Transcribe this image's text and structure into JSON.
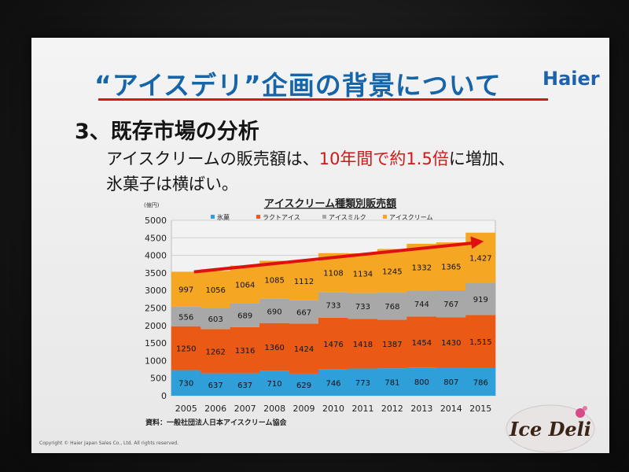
{
  "slide": {
    "title": "“アイスデリ”企画の背景について",
    "brand": "Haier",
    "heading": "3、既存市場の分析",
    "body_line1_pre": "アイスクリームの販売額は、",
    "body_line1_highlight": "10年間で約1.5倍",
    "body_line1_post": "に増加、",
    "body_line2": "氷菓子は横ばい。",
    "footer": "Copyright © Haier Japan Sales Co., Ltd. All rights reserved.",
    "logo_text": "Ice Deli"
  },
  "chart_data": {
    "type": "bar",
    "stacked": true,
    "title": "アイスクリーム種類別販売額",
    "unit_label": "(億円)",
    "source": "資料：一般社団法人日本アイスクリーム協会",
    "categories": [
      "2005",
      "2006",
      "2007",
      "2008",
      "2009",
      "2010",
      "2011",
      "2012",
      "2013",
      "2014",
      "2015"
    ],
    "ylim": [
      0,
      5000
    ],
    "yticks": [
      0,
      500,
      1000,
      1500,
      2000,
      2500,
      3000,
      3500,
      4000,
      4500,
      5000
    ],
    "grid": true,
    "legend_position": "top",
    "series": [
      {
        "name": "氷菓",
        "color": "#2e9fd8",
        "values": [
          730,
          637,
          637,
          710,
          629,
          746,
          773,
          781,
          800,
          807,
          786
        ],
        "labels": [
          "730",
          "637",
          "637",
          "710",
          "629",
          "746",
          "773",
          "781",
          "800",
          "807",
          "786"
        ]
      },
      {
        "name": "ラクトアイス",
        "color": "#ea5a14",
        "values": [
          1250,
          1262,
          1316,
          1360,
          1424,
          1476,
          1418,
          1387,
          1454,
          1430,
          1515
        ],
        "labels": [
          "1250",
          "1262",
          "1316",
          "1360",
          "1424",
          "1476",
          "1418",
          "1387",
          "1454",
          "1430",
          "1,515"
        ]
      },
      {
        "name": "アイスミルク",
        "color": "#a8a8a8",
        "values": [
          556,
          603,
          689,
          690,
          667,
          733,
          733,
          768,
          744,
          767,
          919
        ],
        "labels": [
          "556",
          "603",
          "689",
          "690",
          "667",
          "733",
          "733",
          "768",
          "744",
          "767",
          "919"
        ]
      },
      {
        "name": "アイスクリーム",
        "color": "#f5a623",
        "values": [
          997,
          1056,
          1064,
          1085,
          1112,
          1108,
          1134,
          1245,
          1332,
          1365,
          1427
        ],
        "labels": [
          "997",
          "1056",
          "1064",
          "1085",
          "1112",
          "1108",
          "1134",
          "1245",
          "1332",
          "1365",
          "1,427"
        ]
      }
    ],
    "annotation": {
      "type": "trend-arrow",
      "color": "#e01010",
      "from_category": "2005",
      "to_category": "2015",
      "from_value": 3530,
      "to_value": 4400
    }
  }
}
